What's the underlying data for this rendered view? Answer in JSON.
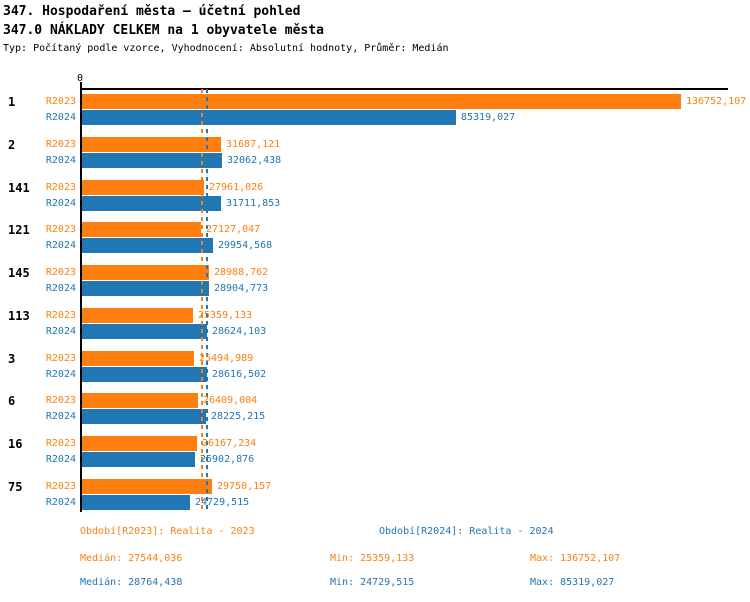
{
  "header": {
    "title": "347. Hospodaření města – účetní pohled",
    "subtitle": "347.0 NÁKLADY CELKEM na 1 obyvatele města",
    "meta": "Typ: Počítaný podle vzorce, Vyhodnocení: Absolutní hodnoty, Průměr: Medián"
  },
  "colors": {
    "r2023": "#FF7F0E",
    "r2024": "#2176B4",
    "axis": "#000000"
  },
  "chart_data": {
    "type": "bar",
    "orientation": "horizontal",
    "title": "347.0 NÁKLADY CELKEM na 1 obyvatele města",
    "xlabel": "",
    "ylabel": "",
    "xlim": [
      0,
      147000
    ],
    "x_tick_labels": [
      "0"
    ],
    "grid": false,
    "legend_position": "bottom",
    "categories": [
      "1",
      "2",
      "141",
      "121",
      "145",
      "113",
      "3",
      "6",
      "16",
      "75"
    ],
    "series": [
      {
        "name": "R2023",
        "color": "#FF7F0E",
        "values": [
          136752.107,
          31687.121,
          27961.026,
          27127.047,
          28988.762,
          25359.133,
          25494.989,
          26409.004,
          26167.234,
          29750.157
        ],
        "labels": [
          "136752,107",
          "31687,121",
          "27961,026",
          "27127,047",
          "28988,762",
          "25359,133",
          "25494,989",
          "26409,004",
          "26167,234",
          "29750,157"
        ]
      },
      {
        "name": "R2024",
        "color": "#2176B4",
        "values": [
          85319.027,
          32062.438,
          31711.853,
          29954.568,
          28904.773,
          28624.103,
          28616.502,
          28225.215,
          25902.876,
          24729.515
        ],
        "labels": [
          "85319,027",
          "32062,438",
          "31711,853",
          "29954,568",
          "28904,773",
          "28624,103",
          "28616,502",
          "28225,215",
          "25902,876",
          "24729,515"
        ]
      }
    ],
    "median_lines": {
      "r2023": 27544.036,
      "r2024": 28764.438
    }
  },
  "legend": {
    "r2023": {
      "period": "Období[R2023]: Realita - 2023",
      "median": "Medián: 27544,036",
      "min": "Min: 25359,133",
      "max": "Max: 136752,107"
    },
    "r2024": {
      "period": "Období[R2024]: Realita - 2024",
      "median": "Medián: 28764,438",
      "min": "Min: 24729,515",
      "max": "Max: 85319,027"
    }
  }
}
